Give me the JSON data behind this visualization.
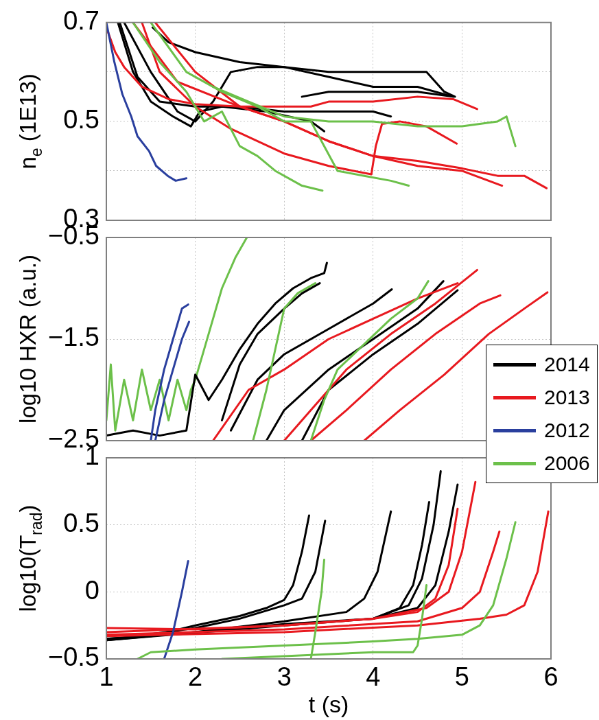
{
  "chart_data": [
    {
      "type": "line",
      "ylabel": "n$_{e}$ (1E13)",
      "xlim": [
        1,
        6
      ],
      "xticks": [
        1,
        2,
        3,
        4,
        5,
        6
      ],
      "ylim": [
        0.3,
        0.7
      ],
      "yticks": [
        0.3,
        {
          "value": 0.4,
          "label": null
        },
        0.5,
        {
          "value": 0.6,
          "label": null
        },
        0.7
      ],
      "grid": true,
      "tick_labels": "y",
      "marker": "none",
      "series": [
        {
          "color": "#000000",
          "x": [
            1.13,
            1.3,
            1.5,
            1.75,
            1.95,
            2.05,
            2.3,
            2.8,
            3.3,
            3.45
          ],
          "values": [
            0.7,
            0.6,
            0.54,
            0.51,
            0.49,
            0.52,
            0.53,
            0.52,
            0.5,
            0.48
          ]
        },
        {
          "color": "#000000",
          "x": [
            1.15,
            1.35,
            1.6,
            2.0,
            2.5,
            3.0,
            3.5,
            4.0,
            4.2
          ],
          "values": [
            0.7,
            0.59,
            0.54,
            0.53,
            0.53,
            0.52,
            0.52,
            0.52,
            0.51
          ]
        },
        {
          "color": "#000000",
          "x": [
            1.2,
            1.5,
            1.8,
            2.0,
            2.2,
            2.4,
            2.7,
            3.0,
            3.5,
            4.0,
            4.5,
            4.9
          ],
          "values": [
            0.7,
            0.6,
            0.52,
            0.5,
            0.54,
            0.6,
            0.61,
            0.61,
            0.59,
            0.57,
            0.57,
            0.55
          ]
        },
        {
          "color": "#000000",
          "x": [
            1.52,
            1.7,
            2.0,
            2.5,
            3.0,
            3.5,
            4.0,
            4.5,
            4.6,
            4.8,
            4.92
          ],
          "values": [
            0.69,
            0.66,
            0.64,
            0.62,
            0.61,
            0.6,
            0.6,
            0.6,
            0.6,
            0.56,
            0.55
          ]
        },
        {
          "color": "#000000",
          "x": [
            3.2,
            3.5,
            4.0,
            4.5,
            4.9
          ],
          "values": [
            0.55,
            0.56,
            0.56,
            0.56,
            0.55
          ]
        },
        {
          "color": "#e8191f",
          "x": [
            1.0,
            1.1,
            1.2,
            1.4,
            1.7,
            2.0,
            2.5,
            3.0,
            3.3,
            3.5,
            4.0,
            4.5,
            4.9,
            5.17
          ],
          "values": [
            0.69,
            0.64,
            0.61,
            0.57,
            0.545,
            0.535,
            0.53,
            0.53,
            0.53,
            0.54,
            0.54,
            0.55,
            0.545,
            0.525
          ]
        },
        {
          "color": "#e8191f",
          "x": [
            1.4,
            1.6,
            2.0,
            2.4,
            3.0,
            3.5,
            3.98,
            4.03,
            4.1,
            4.3,
            4.6,
            4.94
          ],
          "values": [
            0.7,
            0.6,
            0.53,
            0.485,
            0.435,
            0.41,
            0.393,
            0.45,
            0.495,
            0.5,
            0.49,
            0.455
          ]
        },
        {
          "color": "#e8191f",
          "x": [
            1.55,
            2.0,
            2.5,
            3.0,
            3.5,
            4.0,
            4.5,
            5.0,
            5.45
          ],
          "values": [
            0.7,
            0.6,
            0.53,
            0.5,
            0.46,
            0.43,
            0.41,
            0.4,
            0.37
          ]
        },
        {
          "color": "#e8191f",
          "x": [
            1.3,
            1.8,
            2.5,
            3.0,
            3.5,
            4.0,
            4.5,
            5.0,
            5.4,
            5.7,
            5.95
          ],
          "values": [
            0.7,
            0.58,
            0.53,
            0.5,
            0.46,
            0.43,
            0.42,
            0.405,
            0.39,
            0.39,
            0.365
          ]
        },
        {
          "color": "#2a3f9e",
          "x": [
            1.0,
            1.09,
            1.18,
            1.28,
            1.35,
            1.48,
            1.56,
            1.69,
            1.78,
            1.9
          ],
          "values": [
            0.7,
            0.62,
            0.555,
            0.51,
            0.47,
            0.44,
            0.41,
            0.39,
            0.38,
            0.385
          ]
        },
        {
          "color": "#6cc04a",
          "x": [
            1.3,
            1.6,
            1.9,
            2.1,
            2.3,
            2.5,
            2.7,
            2.9,
            3.2,
            3.43
          ],
          "values": [
            0.7,
            0.62,
            0.56,
            0.5,
            0.52,
            0.45,
            0.43,
            0.4,
            0.37,
            0.36
          ]
        },
        {
          "color": "#6cc04a",
          "x": [
            1.5,
            1.9,
            2.3,
            2.7,
            3.0,
            3.3,
            3.45,
            3.6,
            3.9,
            4.2,
            4.4
          ],
          "values": [
            0.7,
            0.6,
            0.56,
            0.53,
            0.5,
            0.5,
            0.45,
            0.4,
            0.39,
            0.38,
            0.37
          ]
        },
        {
          "color": "#6cc04a",
          "x": [
            2.2,
            2.6,
            3.0,
            3.5,
            4.0,
            4.5,
            5.0,
            5.4,
            5.5,
            5.6
          ],
          "values": [
            0.57,
            0.54,
            0.51,
            0.5,
            0.5,
            0.49,
            0.49,
            0.5,
            0.51,
            0.45
          ]
        }
      ]
    },
    {
      "type": "line",
      "ylabel": "log10 HXR (a.u.)",
      "xlim": [
        1,
        6
      ],
      "xticks": [
        1,
        2,
        3,
        4,
        5,
        6
      ],
      "ylim": [
        -2.5,
        -0.5
      ],
      "yticks": [
        -2.5,
        -1.5,
        -0.5
      ],
      "grid": true,
      "tick_labels": "y",
      "marker": "none",
      "series": [
        {
          "color": "#6cc04a",
          "x": [
            1.0,
            1.05,
            1.1,
            1.2,
            1.3,
            1.4,
            1.5,
            1.6,
            1.7,
            1.8,
            1.9,
            1.95,
            2.0,
            2.1,
            2.2,
            2.3,
            2.45,
            2.58
          ],
          "values": [
            -2.3,
            -1.75,
            -2.4,
            -1.9,
            -2.3,
            -1.8,
            -2.2,
            -1.9,
            -2.3,
            -1.9,
            -2.2,
            -2.0,
            -1.9,
            -1.6,
            -1.3,
            -1.0,
            -0.7,
            -0.5
          ]
        },
        {
          "color": "#000000",
          "x": [
            1.0,
            1.3,
            1.6,
            1.9,
            2.0,
            2.15,
            2.3,
            2.5,
            2.7,
            2.9,
            3.1,
            3.3,
            3.45,
            3.48
          ],
          "values": [
            -2.45,
            -2.4,
            -2.45,
            -2.4,
            -1.85,
            -2.1,
            -1.9,
            -1.6,
            -1.35,
            -1.15,
            -1.0,
            -0.9,
            -0.85,
            -0.75
          ]
        },
        {
          "color": "#000000",
          "x": [
            2.3,
            2.5,
            2.7,
            3.0,
            3.2,
            3.4
          ],
          "values": [
            -2.3,
            -1.75,
            -1.45,
            -1.2,
            -1.05,
            -0.95
          ]
        },
        {
          "color": "#000000",
          "x": [
            2.4,
            2.7,
            3.0,
            3.5,
            4.0,
            4.21
          ],
          "values": [
            -2.4,
            -1.9,
            -1.65,
            -1.4,
            -1.15,
            -1.01
          ]
        },
        {
          "color": "#000000",
          "x": [
            2.8,
            3.0,
            3.5,
            4.0,
            4.5,
            4.79
          ],
          "values": [
            -2.5,
            -2.2,
            -1.8,
            -1.5,
            -1.2,
            -0.93
          ]
        },
        {
          "color": "#000000",
          "x": [
            3.2,
            3.5,
            4.0,
            4.5,
            4.95
          ],
          "values": [
            -2.5,
            -2.0,
            -1.65,
            -1.35,
            -1.02
          ]
        },
        {
          "color": "#e8191f",
          "x": [
            2.2,
            2.6,
            3.0,
            3.5,
            4.0,
            4.5,
            4.95
          ],
          "values": [
            -2.5,
            -2.0,
            -1.8,
            -1.5,
            -1.3,
            -1.1,
            -0.95
          ]
        },
        {
          "color": "#e8191f",
          "x": [
            3.0,
            3.3,
            3.7,
            4.2,
            4.7,
            5.17
          ],
          "values": [
            -2.5,
            -2.2,
            -1.8,
            -1.45,
            -1.15,
            -0.82
          ]
        },
        {
          "color": "#e8191f",
          "x": [
            3.3,
            3.7,
            4.2,
            4.7,
            5.2,
            5.43
          ],
          "values": [
            -2.5,
            -2.2,
            -1.8,
            -1.45,
            -1.15,
            -1.07
          ]
        },
        {
          "color": "#e8191f",
          "x": [
            3.9,
            4.3,
            4.8,
            5.3,
            5.7,
            5.96
          ],
          "values": [
            -2.5,
            -2.2,
            -1.85,
            -1.45,
            -1.2,
            -1.04
          ]
        },
        {
          "color": "#2a3f9e",
          "x": [
            1.5,
            1.55,
            1.65,
            1.75,
            1.85,
            1.92
          ],
          "values": [
            -2.5,
            -2.2,
            -1.8,
            -1.5,
            -1.2,
            -1.16
          ]
        },
        {
          "color": "#2a3f9e",
          "x": [
            1.55,
            1.65,
            1.75,
            1.85,
            1.93
          ],
          "values": [
            -2.5,
            -2.1,
            -1.8,
            -1.5,
            -1.33
          ]
        },
        {
          "color": "#6cc04a",
          "x": [
            2.65,
            2.8,
            2.9,
            3.0,
            3.15,
            3.35
          ],
          "values": [
            -2.5,
            -2.0,
            -1.6,
            -1.2,
            -1.05,
            -0.95
          ]
        },
        {
          "color": "#6cc04a",
          "x": [
            3.3,
            3.45,
            3.6,
            3.9,
            4.2,
            4.5,
            4.62
          ],
          "values": [
            -2.5,
            -2.1,
            -1.8,
            -1.55,
            -1.3,
            -1.1,
            -0.93
          ]
        }
      ]
    },
    {
      "type": "line",
      "ylabel": "log10(T$_{rad}$)",
      "xlabel": "t (s)",
      "xlim": [
        1,
        6
      ],
      "xticks": [
        1,
        2,
        3,
        4,
        5,
        6
      ],
      "ylim": [
        -0.5,
        1
      ],
      "yticks": [
        -0.5,
        0,
        0.5,
        1
      ],
      "grid": true,
      "legend": "top right",
      "marker": "none",
      "series": [
        {
          "name": "2014",
          "color": "#000000",
          "x": [
            1.0,
            1.5,
            2.0,
            2.5,
            2.8,
            3.0,
            3.1,
            3.2,
            3.28
          ],
          "values": [
            -0.35,
            -0.33,
            -0.25,
            -0.18,
            -0.12,
            -0.06,
            0.05,
            0.3,
            0.57
          ]
        },
        {
          "color": "#000000",
          "x": [
            1.0,
            2.0,
            2.5,
            3.0,
            3.2,
            3.35,
            3.46
          ],
          "values": [
            -0.36,
            -0.27,
            -0.2,
            -0.1,
            -0.05,
            0.15,
            0.53
          ]
        },
        {
          "color": "#000000",
          "x": [
            1.0,
            2.0,
            3.0,
            3.7,
            3.9,
            4.05,
            4.2
          ],
          "values": [
            -0.35,
            -0.3,
            -0.22,
            -0.15,
            -0.05,
            0.15,
            0.6
          ]
        },
        {
          "color": "#000000",
          "x": [
            1.0,
            2.0,
            3.0,
            4.0,
            4.3,
            4.45,
            4.55,
            4.63
          ],
          "values": [
            -0.36,
            -0.3,
            -0.24,
            -0.2,
            -0.12,
            0.05,
            0.35,
            0.67
          ]
        },
        {
          "color": "#000000",
          "x": [
            1.0,
            3.0,
            4.0,
            4.4,
            4.55,
            4.68,
            4.76
          ],
          "values": [
            -0.36,
            -0.25,
            -0.2,
            -0.1,
            0.1,
            0.5,
            0.9
          ]
        },
        {
          "color": "#000000",
          "x": [
            4.0,
            4.5,
            4.7,
            4.85,
            4.95
          ],
          "values": [
            -0.2,
            -0.12,
            0.05,
            0.45,
            0.8
          ]
        },
        {
          "name": "2013",
          "color": "#e8191f",
          "x": [
            1.0,
            2.0,
            3.0,
            4.0,
            4.5,
            4.7,
            4.85,
            4.95
          ],
          "values": [
            -0.27,
            -0.28,
            -0.25,
            -0.2,
            -0.15,
            -0.05,
            0.2,
            0.62
          ]
        },
        {
          "color": "#e8191f",
          "x": [
            1.0,
            3.0,
            4.0,
            4.6,
            4.85,
            5.0,
            5.15
          ],
          "values": [
            -0.3,
            -0.25,
            -0.2,
            -0.12,
            0.0,
            0.3,
            0.82
          ]
        },
        {
          "color": "#e8191f",
          "x": [
            1.0,
            3.0,
            4.5,
            5.0,
            5.2,
            5.35,
            5.42
          ],
          "values": [
            -0.32,
            -0.28,
            -0.22,
            -0.12,
            0.0,
            0.3,
            0.45
          ]
        },
        {
          "color": "#e8191f",
          "x": [
            1.0,
            3.0,
            4.5,
            5.2,
            5.5,
            5.7,
            5.85,
            5.97
          ],
          "values": [
            -0.33,
            -0.3,
            -0.25,
            -0.2,
            -0.17,
            -0.1,
            0.15,
            0.6
          ]
        },
        {
          "name": "2012",
          "color": "#2a3f9e",
          "x": [
            1.65,
            1.75,
            1.85,
            1.92
          ],
          "values": [
            -0.5,
            -0.3,
            0.0,
            0.23
          ]
        },
        {
          "name": "2006",
          "color": "#6cc04a",
          "x": [
            1.35,
            1.5,
            2.0,
            3.0,
            4.0,
            4.5,
            5.0,
            5.2,
            5.35,
            5.5,
            5.6
          ],
          "values": [
            -0.5,
            -0.45,
            -0.43,
            -0.4,
            -0.37,
            -0.35,
            -0.32,
            -0.25,
            -0.1,
            0.25,
            0.52
          ]
        },
        {
          "color": "#6cc04a",
          "x": [
            3.3,
            3.35,
            3.42,
            3.45
          ],
          "values": [
            -0.5,
            -0.3,
            0.0,
            0.24
          ]
        },
        {
          "color": "#6cc04a",
          "x": [
            2.3,
            3.0,
            4.0,
            4.45,
            4.5,
            4.55,
            4.6
          ],
          "values": [
            -0.5,
            -0.48,
            -0.45,
            -0.45,
            -0.4,
            -0.2,
            0.05
          ]
        }
      ]
    }
  ]
}
